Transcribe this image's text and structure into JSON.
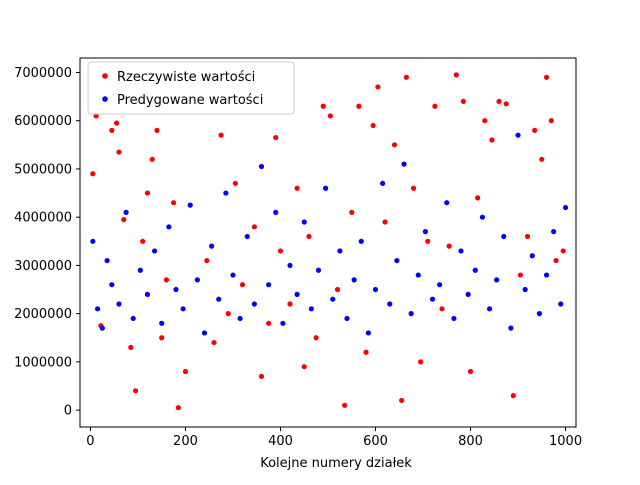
{
  "chart_data": {
    "type": "scatter",
    "xlabel": "Kolejne numery działek",
    "ylabel": "",
    "xlim": [
      -22,
      1022
    ],
    "ylim": [
      -350000,
      7300000
    ],
    "xticks": [
      0,
      200,
      400,
      600,
      800,
      1000
    ],
    "xtick_labels": [
      "0",
      "200",
      "400",
      "600",
      "800",
      "1000"
    ],
    "yticks": [
      0,
      1000000,
      2000000,
      3000000,
      4000000,
      5000000,
      6000000,
      7000000
    ],
    "ytick_labels": [
      "0",
      "1000000",
      "2000000",
      "3000000",
      "4000000",
      "5000000",
      "6000000",
      "7000000"
    ],
    "grid": false,
    "legend_position": "top-left",
    "series": [
      {
        "name": "Rzeczywiste wartości",
        "color": "#ff0000",
        "points": [
          [
            5,
            4900000
          ],
          [
            12,
            6100000
          ],
          [
            22,
            1750000
          ],
          [
            30,
            6250000
          ],
          [
            45,
            5800000
          ],
          [
            55,
            5950000
          ],
          [
            60,
            5350000
          ],
          [
            70,
            3950000
          ],
          [
            85,
            1300000
          ],
          [
            95,
            400000
          ],
          [
            110,
            3500000
          ],
          [
            120,
            4500000
          ],
          [
            130,
            5200000
          ],
          [
            140,
            5800000
          ],
          [
            150,
            1500000
          ],
          [
            160,
            2700000
          ],
          [
            175,
            4300000
          ],
          [
            185,
            50000
          ],
          [
            200,
            800000
          ],
          [
            215,
            6200000
          ],
          [
            230,
            6500000
          ],
          [
            245,
            3100000
          ],
          [
            260,
            1400000
          ],
          [
            275,
            5700000
          ],
          [
            290,
            2000000
          ],
          [
            305,
            4700000
          ],
          [
            320,
            2600000
          ],
          [
            330,
            6200000
          ],
          [
            345,
            3800000
          ],
          [
            360,
            700000
          ],
          [
            375,
            1800000
          ],
          [
            390,
            5650000
          ],
          [
            400,
            3300000
          ],
          [
            420,
            2200000
          ],
          [
            435,
            4600000
          ],
          [
            450,
            900000
          ],
          [
            460,
            3600000
          ],
          [
            475,
            1500000
          ],
          [
            490,
            6300000
          ],
          [
            505,
            6100000
          ],
          [
            520,
            2500000
          ],
          [
            535,
            100000
          ],
          [
            550,
            4100000
          ],
          [
            565,
            6300000
          ],
          [
            580,
            1200000
          ],
          [
            595,
            5900000
          ],
          [
            605,
            6700000
          ],
          [
            620,
            3900000
          ],
          [
            640,
            5500000
          ],
          [
            655,
            200000
          ],
          [
            665,
            6900000
          ],
          [
            680,
            4600000
          ],
          [
            695,
            1000000
          ],
          [
            710,
            3500000
          ],
          [
            725,
            6300000
          ],
          [
            740,
            2100000
          ],
          [
            755,
            3400000
          ],
          [
            770,
            6950000
          ],
          [
            785,
            6400000
          ],
          [
            800,
            800000
          ],
          [
            815,
            4400000
          ],
          [
            830,
            6000000
          ],
          [
            845,
            5600000
          ],
          [
            860,
            6400000
          ],
          [
            875,
            6350000
          ],
          [
            890,
            300000
          ],
          [
            905,
            2800000
          ],
          [
            920,
            3600000
          ],
          [
            935,
            5800000
          ],
          [
            950,
            5200000
          ],
          [
            960,
            6900000
          ],
          [
            970,
            6000000
          ],
          [
            980,
            3100000
          ],
          [
            995,
            3300000
          ]
        ]
      },
      {
        "name": "Predygowane wartości",
        "color": "#0000ff",
        "points": [
          [
            5,
            3500000
          ],
          [
            15,
            2100000
          ],
          [
            25,
            1700000
          ],
          [
            35,
            3100000
          ],
          [
            45,
            2600000
          ],
          [
            60,
            2200000
          ],
          [
            75,
            4100000
          ],
          [
            90,
            1900000
          ],
          [
            105,
            2900000
          ],
          [
            120,
            2400000
          ],
          [
            135,
            3300000
          ],
          [
            150,
            1800000
          ],
          [
            165,
            3800000
          ],
          [
            180,
            2500000
          ],
          [
            195,
            2100000
          ],
          [
            210,
            4250000
          ],
          [
            225,
            2700000
          ],
          [
            240,
            1600000
          ],
          [
            255,
            3400000
          ],
          [
            270,
            2300000
          ],
          [
            285,
            4500000
          ],
          [
            300,
            2800000
          ],
          [
            315,
            1900000
          ],
          [
            330,
            3600000
          ],
          [
            345,
            2200000
          ],
          [
            360,
            5050000
          ],
          [
            375,
            2600000
          ],
          [
            390,
            4100000
          ],
          [
            405,
            1800000
          ],
          [
            420,
            3000000
          ],
          [
            435,
            2400000
          ],
          [
            450,
            3900000
          ],
          [
            465,
            2100000
          ],
          [
            480,
            2900000
          ],
          [
            495,
            4600000
          ],
          [
            510,
            2300000
          ],
          [
            525,
            3300000
          ],
          [
            540,
            1900000
          ],
          [
            555,
            2700000
          ],
          [
            570,
            3500000
          ],
          [
            585,
            1600000
          ],
          [
            600,
            2500000
          ],
          [
            615,
            4700000
          ],
          [
            630,
            2200000
          ],
          [
            645,
            3100000
          ],
          [
            660,
            5100000
          ],
          [
            675,
            2000000
          ],
          [
            690,
            2800000
          ],
          [
            705,
            3700000
          ],
          [
            720,
            2300000
          ],
          [
            735,
            2600000
          ],
          [
            750,
            4300000
          ],
          [
            765,
            1900000
          ],
          [
            780,
            3300000
          ],
          [
            795,
            2400000
          ],
          [
            810,
            2900000
          ],
          [
            825,
            4000000
          ],
          [
            840,
            2100000
          ],
          [
            855,
            2700000
          ],
          [
            870,
            3600000
          ],
          [
            885,
            1700000
          ],
          [
            900,
            5700000
          ],
          [
            915,
            2500000
          ],
          [
            930,
            3200000
          ],
          [
            945,
            2000000
          ],
          [
            960,
            2800000
          ],
          [
            975,
            3700000
          ],
          [
            990,
            2200000
          ],
          [
            1000,
            4200000
          ]
        ]
      }
    ]
  },
  "legend": {
    "items": [
      {
        "label": "Rzeczywiste wartości",
        "color": "#ff0000"
      },
      {
        "label": "Predygowane wartości",
        "color": "#0000ff"
      }
    ]
  }
}
